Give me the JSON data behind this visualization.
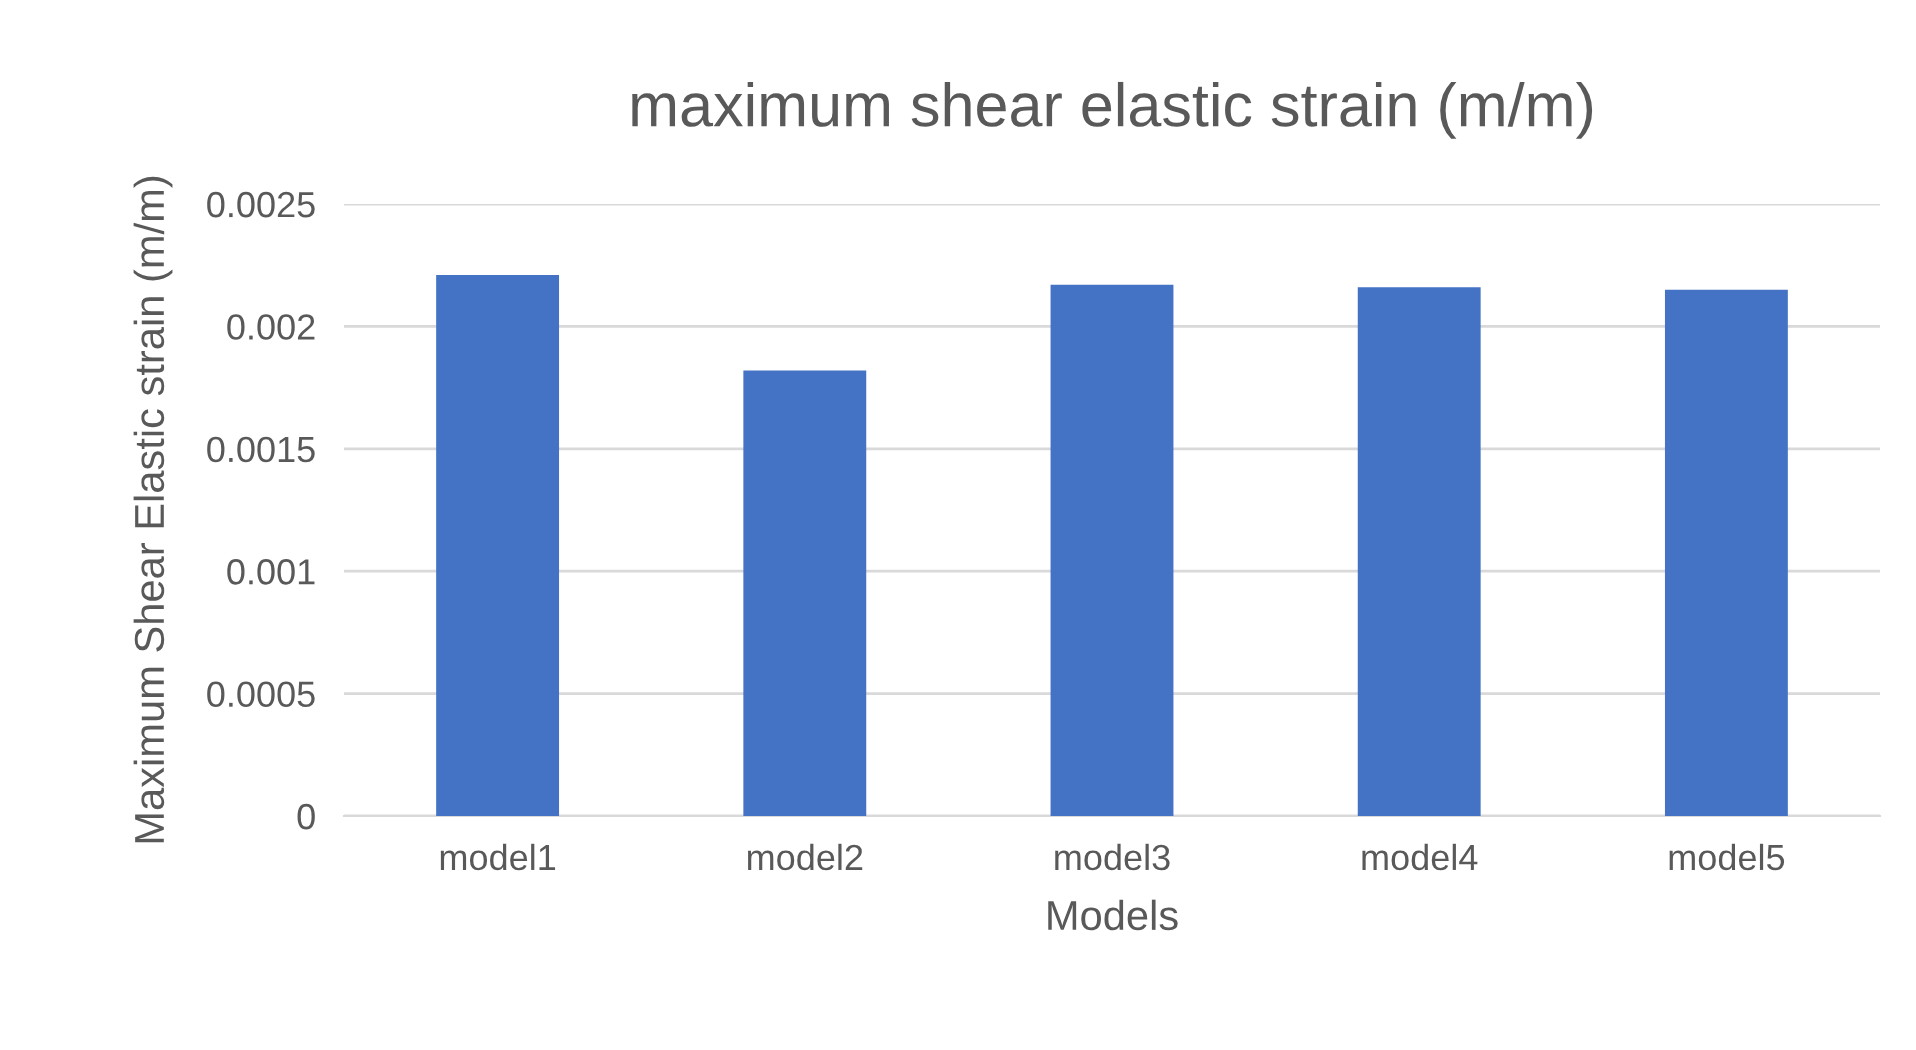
{
  "chart_data": {
    "type": "bar",
    "title": "maximum shear elastic strain (m/m)",
    "xlabel": "Models",
    "ylabel": "Maximum Shear Elastic strain (m/m)",
    "categories": [
      "model1",
      "model2",
      "model3",
      "model4",
      "model5"
    ],
    "values": [
      0.00221,
      0.00182,
      0.00217,
      0.00216,
      0.00215
    ],
    "color": "#4472c4",
    "ylim": [
      0,
      0.0025
    ],
    "yticks": [
      0,
      0.0005,
      0.001,
      0.0015,
      0.002,
      0.0025
    ],
    "grid": "y",
    "legend": false
  }
}
